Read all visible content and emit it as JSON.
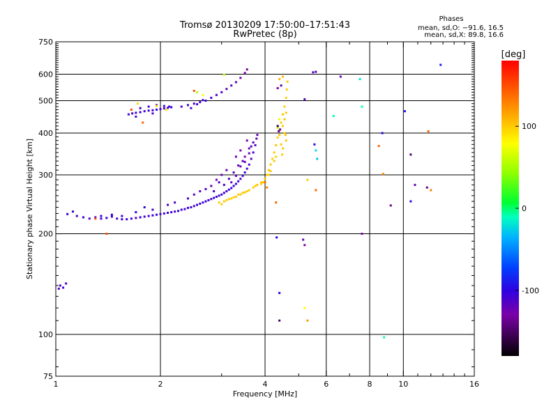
{
  "chart_data": {
    "type": "scatter",
    "title": "Tromsø 20130209 17:50:00–17:51:43",
    "subtitle": "RwPretec (8p)",
    "stats": {
      "heading": "Phases",
      "line_o": "mean, sd,O: −91.6, 16.5",
      "line_x": "mean, sd,X:  89.8, 16.6"
    },
    "xlabel": "Frequency [MHz]",
    "ylabel": "Stationary phase Virtual Height [km]",
    "x_scale": "log",
    "y_scale": "log",
    "xlim": [
      1,
      16
    ],
    "ylim": [
      75,
      750
    ],
    "x_ticks": [
      {
        "v": 1,
        "label": "1"
      },
      {
        "v": 2,
        "label": "2"
      },
      {
        "v": 4,
        "label": "4"
      },
      {
        "v": 6,
        "label": "6"
      },
      {
        "v": 8,
        "label": "8"
      },
      {
        "v": 10,
        "label": "10"
      },
      {
        "v": 16,
        "label": "16"
      }
    ],
    "x_grid": [
      2,
      4,
      6,
      8,
      10
    ],
    "y_ticks": [
      {
        "v": 75,
        "label": "75"
      },
      {
        "v": 100,
        "label": "100"
      },
      {
        "v": 200,
        "label": "200"
      },
      {
        "v": 300,
        "label": "300"
      },
      {
        "v": 400,
        "label": "400"
      },
      {
        "v": 500,
        "label": "500"
      },
      {
        "v": 600,
        "label": "600"
      },
      {
        "v": 750,
        "label": "750"
      }
    ],
    "y_grid": [
      100,
      200,
      300,
      400,
      500,
      600
    ],
    "colorbar": {
      "label": "[deg]",
      "range": [
        -180,
        180
      ],
      "ticks": [
        {
          "v": 100,
          "label": "100"
        },
        {
          "v": 0,
          "label": "0"
        },
        {
          "v": -100,
          "label": "-100"
        }
      ]
    },
    "points": [
      [
        1.03,
        140,
        -110
      ],
      [
        1.05,
        138,
        -105
      ],
      [
        1.07,
        142,
        -108
      ],
      [
        1.02,
        137,
        -115
      ],
      [
        1.08,
        229,
        -100
      ],
      [
        1.12,
        233,
        -105
      ],
      [
        1.15,
        226,
        -110
      ],
      [
        1.2,
        224,
        -100
      ],
      [
        1.25,
        222,
        -108
      ],
      [
        1.3,
        224,
        -105
      ],
      [
        1.35,
        222,
        -110
      ],
      [
        1.4,
        223,
        -100
      ],
      [
        1.45,
        225,
        -105
      ],
      [
        1.5,
        222,
        -110
      ],
      [
        1.55,
        221,
        -100
      ],
      [
        1.6,
        221,
        -108
      ],
      [
        1.65,
        222,
        -105
      ],
      [
        1.7,
        223,
        -110
      ],
      [
        1.75,
        224,
        -100
      ],
      [
        1.8,
        225,
        -105
      ],
      [
        1.85,
        226,
        -110
      ],
      [
        1.9,
        227,
        -100
      ],
      [
        1.95,
        228,
        -105
      ],
      [
        2,
        229,
        -108
      ],
      [
        2.05,
        230,
        -110
      ],
      [
        2.1,
        231,
        -100
      ],
      [
        2.15,
        232,
        -105
      ],
      [
        2.2,
        233,
        -110
      ],
      [
        2.25,
        234,
        -100
      ],
      [
        2.3,
        236,
        -105
      ],
      [
        2.35,
        237,
        -108
      ],
      [
        2.4,
        239,
        -100
      ],
      [
        2.45,
        240,
        -105
      ],
      [
        2.5,
        242,
        -110
      ],
      [
        2.55,
        244,
        -100
      ],
      [
        2.6,
        246,
        -105
      ],
      [
        2.65,
        248,
        -108
      ],
      [
        2.7,
        250,
        -100
      ],
      [
        2.75,
        252,
        -105
      ],
      [
        2.8,
        254,
        -110
      ],
      [
        2.85,
        256,
        -100
      ],
      [
        2.9,
        258,
        -105
      ],
      [
        2.95,
        260,
        -108
      ],
      [
        3,
        262,
        -100
      ],
      [
        3.05,
        265,
        -105
      ],
      [
        3.1,
        268,
        -110
      ],
      [
        3.15,
        271,
        -100
      ],
      [
        3.2,
        274,
        -105
      ],
      [
        3.25,
        278,
        -108
      ],
      [
        3.3,
        282,
        -100
      ],
      [
        3.35,
        287,
        -105
      ],
      [
        3.4,
        292,
        -110
      ],
      [
        3.45,
        298,
        -100
      ],
      [
        3.5,
        305,
        -105
      ],
      [
        3.55,
        313,
        -108
      ],
      [
        3.6,
        322,
        -110
      ],
      [
        3.65,
        335,
        -115
      ],
      [
        3.7,
        350,
        -110
      ],
      [
        3.75,
        368,
        -115
      ],
      [
        3.78,
        385,
        -120
      ],
      [
        3.8,
        395,
        -118
      ],
      [
        3.2,
        285,
        -125
      ],
      [
        3.3,
        298,
        -120
      ],
      [
        3.4,
        318,
        -125
      ],
      [
        3.5,
        340,
        -130
      ],
      [
        3.6,
        360,
        -125
      ],
      [
        3.55,
        380,
        -128
      ],
      [
        3.4,
        355,
        -130
      ],
      [
        3.3,
        340,
        -128
      ],
      [
        3.1,
        310,
        -125
      ],
      [
        3.0,
        300,
        -120
      ],
      [
        2.9,
        290,
        -125
      ],
      [
        2.8,
        278,
        -122
      ],
      [
        2.6,
        268,
        -118
      ],
      [
        2.5,
        262,
        -115
      ],
      [
        2.4,
        255,
        -112
      ],
      [
        2.2,
        248,
        -110
      ],
      [
        2.1,
        244,
        -108
      ],
      [
        3.45,
        330,
        -120
      ],
      [
        3.35,
        320,
        -118
      ],
      [
        3.25,
        305,
        -115
      ],
      [
        3.65,
        365,
        -118
      ],
      [
        3.7,
        375,
        -122
      ],
      [
        3.6,
        348,
        -120
      ],
      [
        3.5,
        328,
        -118
      ],
      [
        3.15,
        292,
        -115
      ],
      [
        2.95,
        285,
        -112
      ],
      [
        2.7,
        272,
        -110
      ],
      [
        1.8,
        240,
        -105
      ],
      [
        1.9,
        236,
        -108
      ],
      [
        1.7,
        232,
        -100
      ],
      [
        1.35,
        226,
        -102
      ],
      [
        1.45,
        228,
        -104
      ],
      [
        1.55,
        226,
        -106
      ],
      [
        2.85,
        268,
        -108
      ],
      [
        3.05,
        280,
        -110
      ],
      [
        1.62,
        455,
        -110
      ],
      [
        1.66,
        458,
        -105
      ],
      [
        1.7,
        460,
        -108
      ],
      [
        1.75,
        462,
        -100
      ],
      [
        1.8,
        465,
        -110
      ],
      [
        1.85,
        467,
        -105
      ],
      [
        1.9,
        468,
        -108
      ],
      [
        1.95,
        470,
        -100
      ],
      [
        2,
        472,
        -105
      ],
      [
        2.05,
        474,
        -110
      ],
      [
        2.1,
        476,
        -100
      ],
      [
        2.15,
        478,
        -105
      ],
      [
        1.65,
        470,
        -110
      ],
      [
        1.75,
        475,
        -108
      ],
      [
        1.85,
        480,
        -105
      ],
      [
        1.95,
        485,
        -110
      ],
      [
        2.05,
        482,
        -100
      ],
      [
        2.12,
        480,
        -108
      ],
      [
        1.7,
        448,
        -112
      ],
      [
        1.9,
        458,
        -112
      ],
      [
        2.3,
        480,
        -110
      ],
      [
        2.4,
        485,
        -105
      ],
      [
        2.5,
        490,
        -108
      ],
      [
        2.6,
        495,
        -110
      ],
      [
        2.7,
        500,
        -105
      ],
      [
        2.8,
        510,
        -110
      ],
      [
        2.9,
        520,
        -108
      ],
      [
        3,
        530,
        -112
      ],
      [
        3.1,
        542,
        -115
      ],
      [
        3.2,
        555,
        -118
      ],
      [
        3.3,
        568,
        -120
      ],
      [
        3.4,
        585,
        -125
      ],
      [
        3.5,
        605,
        -130
      ],
      [
        3.55,
        620,
        -135
      ],
      [
        2.45,
        475,
        -110
      ],
      [
        2.55,
        488,
        -108
      ],
      [
        2.65,
        502,
        -105
      ],
      [
        1.72,
        490,
        95
      ],
      [
        1.95,
        482,
        95
      ],
      [
        2.08,
        470,
        90
      ],
      [
        2.55,
        530,
        50
      ],
      [
        2.65,
        520,
        75
      ],
      [
        3.05,
        598,
        55
      ],
      [
        3,
        245,
        100
      ],
      [
        3.1,
        252,
        100
      ],
      [
        3.2,
        255,
        98
      ],
      [
        3.3,
        258,
        100
      ],
      [
        3.4,
        262,
        102
      ],
      [
        3.5,
        266,
        100
      ],
      [
        3.6,
        270,
        98
      ],
      [
        3.7,
        275,
        100
      ],
      [
        3.8,
        280,
        102
      ],
      [
        3.9,
        285,
        100
      ],
      [
        4,
        292,
        98
      ],
      [
        4.05,
        300,
        100
      ],
      [
        4.1,
        310,
        102
      ],
      [
        4.15,
        322,
        100
      ],
      [
        4.2,
        335,
        98
      ],
      [
        4.25,
        350,
        100
      ],
      [
        4.3,
        368,
        102
      ],
      [
        4.35,
        388,
        100
      ],
      [
        4.4,
        408,
        98
      ],
      [
        4.45,
        430,
        100
      ],
      [
        4.5,
        455,
        102
      ],
      [
        4.55,
        480,
        100
      ],
      [
        4.6,
        510,
        98
      ],
      [
        4.62,
        540,
        100
      ],
      [
        4.64,
        570,
        102
      ],
      [
        4.5,
        420,
        100
      ],
      [
        4.55,
        400,
        98
      ],
      [
        4.6,
        380,
        100
      ],
      [
        4.4,
        395,
        102
      ],
      [
        4.45,
        370,
        100
      ],
      [
        4.3,
        340,
        98
      ],
      [
        4.25,
        330,
        100
      ],
      [
        4.15,
        308,
        102
      ],
      [
        4.1,
        300,
        100
      ],
      [
        4,
        285,
        98
      ],
      [
        3.9,
        282,
        100
      ],
      [
        3.75,
        278,
        98
      ],
      [
        3.55,
        268,
        100
      ],
      [
        3.45,
        265,
        102
      ],
      [
        3.35,
        262,
        100
      ],
      [
        3.25,
        257,
        98
      ],
      [
        3.15,
        254,
        100
      ],
      [
        3.05,
        250,
        102
      ],
      [
        2.95,
        248,
        100
      ],
      [
        4.5,
        590,
        105
      ],
      [
        4.4,
        580,
        110
      ],
      [
        4.55,
        440,
        105
      ],
      [
        4.6,
        460,
        100
      ],
      [
        4.5,
        360,
        100
      ],
      [
        4.58,
        395,
        102
      ],
      [
        4.48,
        345,
        100
      ],
      [
        3.95,
        285,
        100
      ],
      [
        4.35,
        415,
        60
      ],
      [
        4.4,
        440,
        75
      ],
      [
        4.38,
        405,
        -140
      ],
      [
        4.42,
        410,
        -120
      ],
      [
        4.35,
        420,
        -160
      ],
      [
        4.45,
        555,
        -140
      ],
      [
        4.35,
        545,
        -130
      ],
      [
        1.65,
        470,
        140
      ],
      [
        1.78,
        430,
        140
      ],
      [
        2.5,
        535,
        150
      ],
      [
        4.0,
        285,
        140
      ],
      [
        4.05,
        275,
        130
      ],
      [
        4.3,
        248,
        140
      ],
      [
        1.4,
        200,
        150
      ],
      [
        1.3,
        222,
        150
      ],
      [
        4.32,
        195,
        -100
      ],
      [
        5.15,
        192,
        -120
      ],
      [
        5.2,
        185,
        -130
      ],
      [
        4.4,
        133,
        -100
      ],
      [
        4.4,
        110,
        -150
      ],
      [
        5.2,
        120,
        80
      ],
      [
        5.3,
        110,
        120
      ],
      [
        5.3,
        290,
        100
      ],
      [
        5.6,
        270,
        140
      ],
      [
        5.65,
        335,
        -30
      ],
      [
        5.6,
        355,
        -20
      ],
      [
        5.55,
        370,
        -95
      ],
      [
        5.2,
        505,
        -115
      ],
      [
        5.5,
        608,
        -110
      ],
      [
        5.6,
        610,
        -120
      ],
      [
        6.3,
        450,
        -10
      ],
      [
        6.6,
        590,
        -120
      ],
      [
        7.5,
        580,
        -20
      ],
      [
        7.6,
        480,
        -10
      ],
      [
        7.6,
        200,
        -130
      ],
      [
        8.7,
        400,
        -100
      ],
      [
        8.75,
        302,
        130
      ],
      [
        8.5,
        366,
        140
      ],
      [
        9.2,
        243,
        -140
      ],
      [
        10.1,
        465,
        -90
      ],
      [
        10.5,
        345,
        -150
      ],
      [
        10.5,
        250,
        -100
      ],
      [
        10.8,
        280,
        -120
      ],
      [
        11.7,
        275,
        -140
      ],
      [
        11.8,
        405,
        140
      ],
      [
        12.8,
        640,
        -90
      ],
      [
        8.8,
        98,
        -10
      ],
      [
        12.0,
        270,
        130
      ]
    ]
  }
}
